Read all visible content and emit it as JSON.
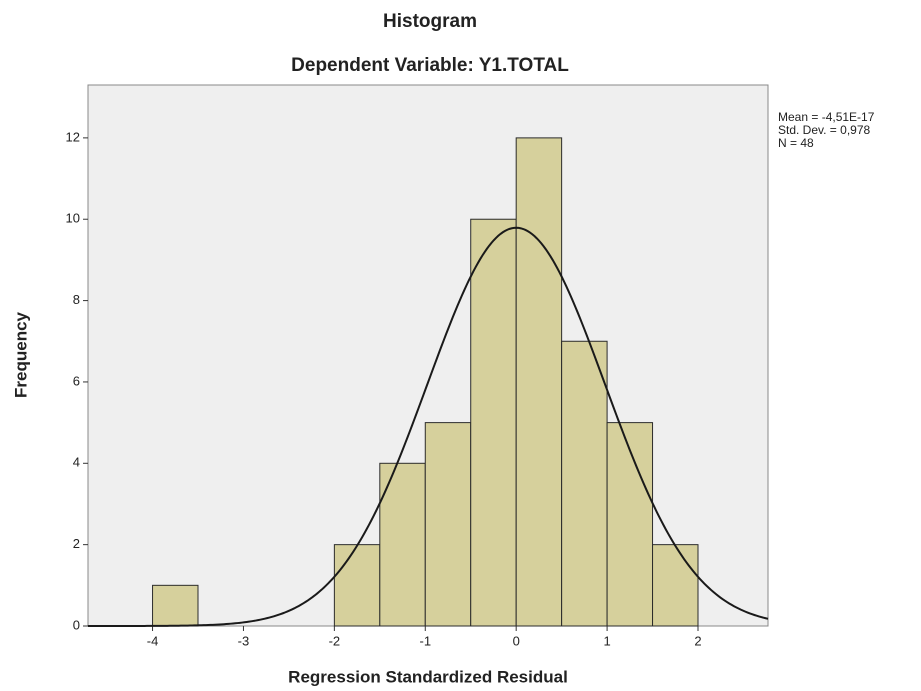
{
  "chart_data": {
    "type": "histogram",
    "title": "Histogram",
    "subtitle": "Dependent Variable: Y1.TOTAL",
    "x_label": "Regression Standardized Residual",
    "y_label": "Frequency",
    "bins": [
      -4,
      -3.5,
      -3,
      -2.5,
      -2,
      -1.5,
      -1,
      -0.5,
      0,
      0.5,
      1,
      1.5,
      2
    ],
    "values": [
      1,
      0,
      0,
      0,
      2,
      4,
      5,
      10,
      12,
      7,
      5,
      2
    ],
    "color": "#d6d09c",
    "edge_color": "#2b2b2b",
    "xlim": [
      -4.71,
      2.77
    ],
    "ylim": [
      0,
      13.3
    ],
    "xticks": [
      -4,
      -3,
      -2,
      -1,
      0,
      1,
      2
    ],
    "yticks": [
      0,
      2,
      4,
      6,
      8,
      10,
      12
    ],
    "stats": {
      "mean": {
        "value": -4.51e-17,
        "label": "Mean = -4,51E-17"
      },
      "sd": {
        "value": 0.978,
        "label": "Std. Dev. = 0,978"
      },
      "n": {
        "value": 48,
        "label": "N = 48"
      }
    },
    "normal_curve": true
  }
}
